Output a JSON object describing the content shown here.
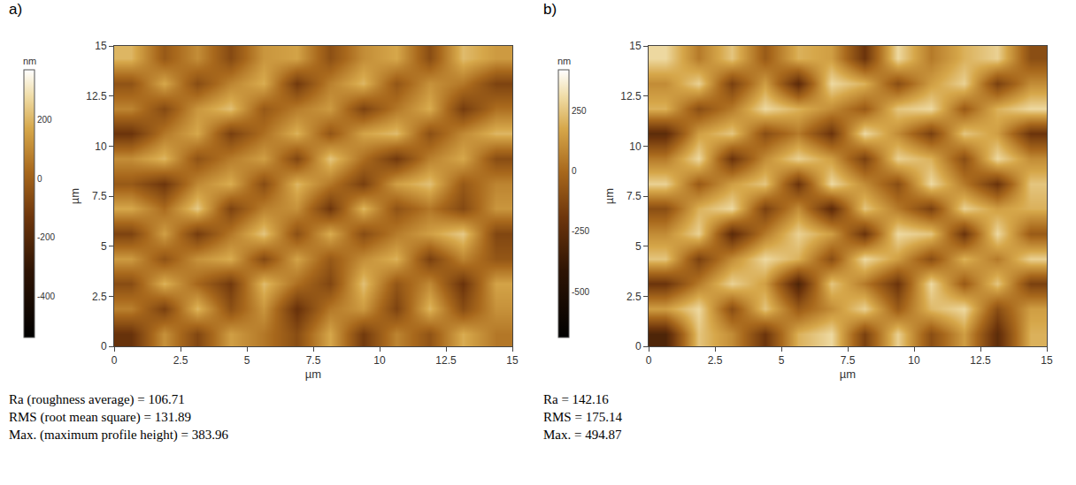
{
  "chart_data": [
    {
      "type": "heatmap",
      "panel_label": "a)",
      "xlabel": "µm",
      "ylabel": "µm",
      "xlim": [
        0,
        15
      ],
      "xticks": [
        0,
        2.5,
        5,
        7.5,
        10,
        12.5,
        15
      ],
      "ylim": [
        0,
        15
      ],
      "yticks": [
        0,
        2.5,
        5,
        7.5,
        10,
        12.5,
        15
      ],
      "colorbar": {
        "title": "nm",
        "range": [
          -540,
          370
        ],
        "ticks": [
          -400,
          -200,
          0,
          200
        ]
      },
      "cells": [
        [
          -150,
          120,
          -80,
          150,
          60,
          -60,
          170,
          -120,
          90,
          -40,
          180,
          60
        ],
        [
          80,
          -100,
          200,
          -50,
          130,
          -150,
          60,
          140,
          -90,
          200,
          -60,
          120
        ],
        [
          -60,
          190,
          20,
          -120,
          210,
          40,
          -80,
          220,
          -30,
          100,
          -140,
          160
        ],
        [
          140,
          -40,
          120,
          180,
          -70,
          160,
          -20,
          110,
          190,
          -100,
          90,
          -30
        ],
        [
          -90,
          150,
          -110,
          60,
          230,
          -50,
          180,
          -60,
          70,
          150,
          240,
          -80
        ],
        [
          170,
          30,
          240,
          -90,
          80,
          120,
          -130,
          200,
          -40,
          60,
          -70,
          130
        ],
        [
          -20,
          -130,
          100,
          180,
          -60,
          200,
          60,
          -100,
          150,
          220,
          -20,
          90
        ],
        [
          110,
          200,
          -40,
          70,
          150,
          -80,
          230,
          40,
          -120,
          80,
          170,
          -60
        ],
        [
          -140,
          60,
          170,
          -100,
          40,
          190,
          -30,
          160,
          210,
          -50,
          100,
          200
        ],
        [
          90,
          -70,
          130,
          220,
          -20,
          70,
          140,
          -90,
          60,
          180,
          -110,
          40
        ],
        [
          -40,
          170,
          -60,
          90,
          180,
          -120,
          80,
          200,
          -30,
          120,
          60,
          -90
        ],
        [
          200,
          -20,
          110,
          -70,
          130,
          160,
          -50,
          110,
          170,
          -60,
          210,
          140
        ]
      ],
      "annotations": [
        "Ra (roughness average) = 106.71",
        "RMS (root mean square) = 131.89",
        "Max. (maximum profile height) = 383.96"
      ]
    },
    {
      "type": "heatmap",
      "panel_label": "b)",
      "xlabel": "µm",
      "ylabel": "µm",
      "xlim": [
        0,
        15
      ],
      "xticks": [
        0,
        2.5,
        5,
        7.5,
        10,
        12.5,
        15
      ],
      "ylim": [
        0,
        15
      ],
      "yticks": [
        0,
        2.5,
        5,
        7.5,
        10,
        12.5,
        15
      ],
      "colorbar": {
        "title": "nm",
        "range": [
          -690,
          420
        ],
        "ticks": [
          -500,
          -250,
          0,
          250
        ]
      },
      "cells": [
        [
          -300,
          250,
          100,
          -200,
          200,
          300,
          -150,
          280,
          -100,
          150,
          -250,
          200
        ],
        [
          150,
          300,
          -100,
          250,
          -50,
          100,
          280,
          -50,
          220,
          300,
          -100,
          150
        ],
        [
          -200,
          50,
          280,
          150,
          -300,
          250,
          50,
          -200,
          300,
          -50,
          250,
          -150
        ],
        [
          250,
          -150,
          100,
          300,
          200,
          -100,
          300,
          150,
          -100,
          200,
          50,
          280
        ],
        [
          100,
          280,
          -250,
          50,
          280,
          150,
          -200,
          300,
          250,
          -200,
          300,
          -50
        ],
        [
          -100,
          200,
          300,
          -150,
          100,
          -250,
          250,
          50,
          -150,
          280,
          150,
          200
        ],
        [
          280,
          -50,
          150,
          250,
          -200,
          300,
          100,
          -100,
          300,
          50,
          -200,
          250
        ],
        [
          50,
          300,
          -200,
          100,
          280,
          150,
          -150,
          280,
          200,
          -100,
          300,
          100
        ],
        [
          -250,
          150,
          250,
          -100,
          50,
          -200,
          300,
          100,
          -150,
          250,
          150,
          -200
        ],
        [
          200,
          -100,
          50,
          300,
          200,
          100,
          -50,
          250,
          300,
          -50,
          200,
          300
        ],
        [
          100,
          280,
          -150,
          150,
          -250,
          300,
          200,
          -100,
          150,
          280,
          -150,
          100
        ],
        [
          300,
          50,
          250,
          -50,
          200,
          150,
          -200,
          300,
          50,
          200,
          280,
          -100
        ]
      ],
      "annotations": [
        "Ra = 142.16",
        "RMS = 175.14",
        "Max. = 494.87"
      ]
    }
  ]
}
